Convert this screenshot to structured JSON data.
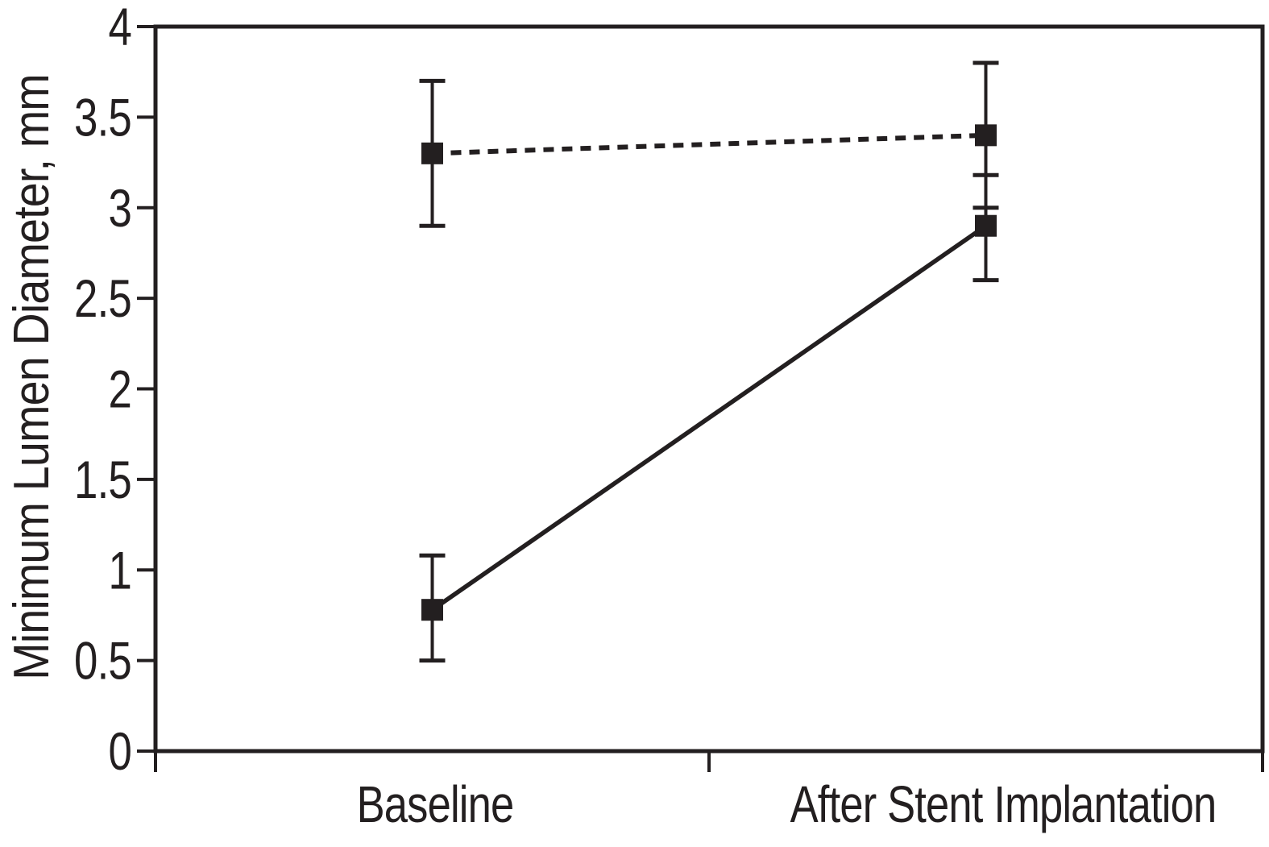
{
  "figure": {
    "background": "#ffffff",
    "ink_color": "#231f20"
  },
  "chart_data": {
    "type": "line",
    "title": "",
    "xlabel": "",
    "ylabel": "Minimum Lumen Diameter, mm",
    "categories": [
      "Baseline",
      "After Stent Implantation"
    ],
    "ylim": [
      0,
      4
    ],
    "y_axis": {
      "ticks": [
        0,
        0.5,
        1,
        1.5,
        2,
        2.5,
        3,
        3.5,
        4
      ],
      "tick_labels": [
        "0",
        "0.5",
        "1",
        "1.5",
        "2",
        "2.5",
        "3",
        "3.5",
        "4"
      ]
    },
    "grid": false,
    "legend": "none",
    "plot_border": "full-box",
    "series": [
      {
        "name": "dashed-series",
        "line_style": "dashed",
        "marker": "filled-square",
        "values": [
          3.3,
          3.4
        ],
        "err_low": [
          2.9,
          3.0
        ],
        "err_high": [
          3.7,
          3.8
        ]
      },
      {
        "name": "solid-series",
        "line_style": "solid",
        "marker": "filled-square",
        "values": [
          0.78,
          2.9
        ],
        "err_low": [
          0.5,
          2.6
        ],
        "err_high": [
          1.08,
          3.18
        ]
      }
    ]
  }
}
